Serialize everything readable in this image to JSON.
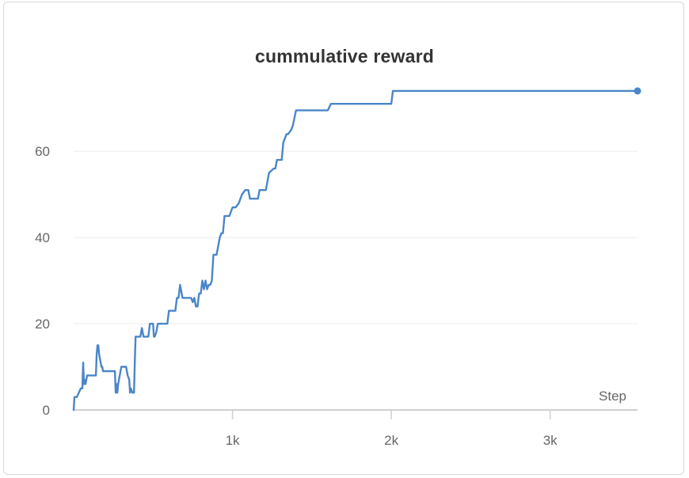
{
  "chart_data": {
    "type": "line",
    "title": "cummulative reward",
    "xlabel": "Step",
    "ylabel": "",
    "xlim": [
      0,
      3550
    ],
    "ylim": [
      0,
      76
    ],
    "x_ticks": [
      {
        "value": 1000,
        "label": "1k"
      },
      {
        "value": 2000,
        "label": "2k"
      },
      {
        "value": 3000,
        "label": "3k"
      }
    ],
    "y_ticks": [
      {
        "value": 0,
        "label": "0"
      },
      {
        "value": 20,
        "label": "20"
      },
      {
        "value": 40,
        "label": "40"
      },
      {
        "value": 60,
        "label": "60"
      }
    ],
    "grid": "horizontal",
    "line_color": "#4a86c8",
    "series": [
      {
        "name": "",
        "x": [
          0,
          5,
          20,
          45,
          55,
          60,
          65,
          70,
          75,
          85,
          95,
          140,
          145,
          150,
          155,
          160,
          170,
          175,
          180,
          185,
          190,
          200,
          210,
          230,
          260,
          265,
          270,
          275,
          280,
          290,
          300,
          310,
          320,
          330,
          340,
          350,
          355,
          360,
          370,
          380,
          385,
          390,
          400,
          420,
          430,
          440,
          460,
          470,
          480,
          500,
          505,
          510,
          520,
          530,
          540,
          550,
          560,
          570,
          580,
          590,
          600,
          640,
          650,
          660,
          670,
          680,
          685,
          690,
          700,
          710,
          720,
          730,
          740,
          750,
          760,
          770,
          780,
          790,
          800,
          810,
          820,
          830,
          840,
          850,
          860,
          870,
          880,
          890,
          900,
          920,
          930,
          940,
          950,
          960,
          970,
          980,
          1000,
          1020,
          1040,
          1060,
          1080,
          1090,
          1100,
          1110,
          1130,
          1160,
          1170,
          1200,
          1210,
          1230,
          1260,
          1270,
          1280,
          1300,
          1310,
          1320,
          1340,
          1350,
          1370,
          1380,
          1400,
          1420,
          1430,
          1440,
          1450,
          1600,
          1620,
          1640,
          1700,
          1800,
          1900,
          2000,
          2010,
          2020,
          2100,
          2500,
          3000,
          3500,
          3550
        ],
        "y": [
          0,
          3,
          3,
          5,
          5,
          11,
          6,
          7,
          6,
          8,
          8,
          8,
          13,
          15,
          15,
          13,
          11,
          10,
          10,
          9,
          9,
          9,
          9,
          9,
          9,
          4,
          6,
          4,
          6,
          8,
          10,
          10,
          10,
          10,
          8,
          7,
          4,
          5,
          4,
          4,
          11,
          17,
          17,
          17,
          19,
          17,
          17,
          17,
          20,
          20,
          17,
          17,
          18,
          20,
          20,
          20,
          20,
          20,
          20,
          20,
          23,
          23,
          26,
          26,
          29,
          27,
          26,
          26,
          26,
          26,
          26,
          26,
          26,
          25,
          26,
          24,
          24,
          27,
          27,
          30,
          28,
          30,
          28,
          29,
          29,
          30,
          36,
          36,
          36,
          40,
          41,
          41,
          45,
          45,
          45,
          45,
          47,
          47,
          48,
          50,
          51,
          51,
          51,
          49,
          49,
          49,
          51,
          51,
          51,
          55,
          56,
          56,
          58,
          58,
          58,
          62,
          64,
          64,
          65,
          66,
          69.5,
          69.5,
          69.5,
          69.5,
          69.5,
          69.5,
          71,
          71,
          71,
          71,
          71,
          71,
          74,
          74,
          74,
          74,
          74,
          74,
          74
        ]
      }
    ]
  }
}
